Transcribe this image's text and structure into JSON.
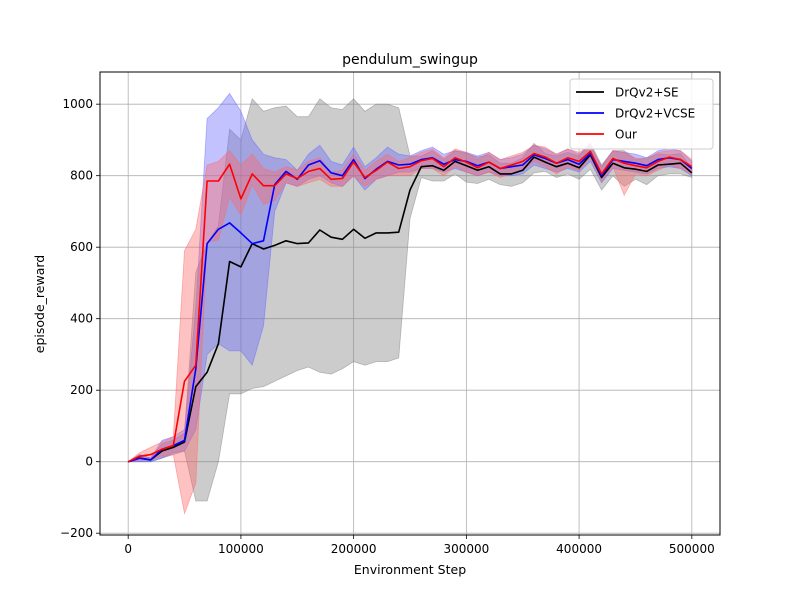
{
  "chart_data": {
    "type": "line",
    "title": "pendulum_swingup",
    "xlabel": "Environment Step",
    "ylabel": "episode_reward",
    "xlim": [
      -25000,
      525000
    ],
    "ylim": [
      -205,
      1090
    ],
    "xticks": [
      0,
      100000,
      200000,
      300000,
      400000,
      500000
    ],
    "yticks": [
      -200,
      0,
      200,
      400,
      600,
      800,
      1000
    ],
    "grid": true,
    "legend": "top-right",
    "x": [
      0,
      10000,
      20000,
      30000,
      40000,
      50000,
      60000,
      70000,
      80000,
      90000,
      100000,
      110000,
      120000,
      130000,
      140000,
      150000,
      160000,
      170000,
      180000,
      190000,
      200000,
      210000,
      220000,
      230000,
      240000,
      250000,
      260000,
      270000,
      280000,
      290000,
      300000,
      310000,
      320000,
      330000,
      340000,
      350000,
      360000,
      370000,
      380000,
      390000,
      400000,
      410000,
      420000,
      430000,
      440000,
      450000,
      460000,
      470000,
      480000,
      490000,
      500000
    ],
    "series": [
      {
        "name": "DrQv2+SE",
        "color": "#000000",
        "band_color": "#808080",
        "values": [
          0,
          10,
          5,
          30,
          40,
          55,
          210,
          250,
          330,
          560,
          545,
          610,
          595,
          605,
          618,
          610,
          612,
          648,
          628,
          622,
          650,
          625,
          640,
          640,
          642,
          760,
          825,
          828,
          815,
          840,
          828,
          815,
          825,
          805,
          805,
          815,
          852,
          838,
          825,
          835,
          822,
          858,
          795,
          835,
          822,
          818,
          812,
          830,
          832,
          835,
          808
        ],
        "lower": [
          0,
          0,
          0,
          10,
          20,
          30,
          -110,
          -110,
          0,
          190,
          190,
          205,
          210,
          225,
          240,
          255,
          265,
          250,
          245,
          260,
          280,
          270,
          280,
          280,
          290,
          680,
          795,
          785,
          785,
          805,
          782,
          778,
          790,
          775,
          770,
          780,
          808,
          812,
          795,
          805,
          790,
          818,
          760,
          800,
          770,
          790,
          775,
          800,
          805,
          805,
          795
        ],
        "upper": [
          0,
          20,
          10,
          50,
          60,
          80,
          530,
          610,
          660,
          930,
          900,
          1015,
          980,
          990,
          995,
          965,
          965,
          1015,
          990,
          985,
          1015,
          980,
          1000,
          1000,
          990,
          855,
          855,
          870,
          845,
          870,
          862,
          852,
          858,
          835,
          835,
          850,
          890,
          862,
          855,
          865,
          855,
          892,
          830,
          870,
          870,
          845,
          850,
          860,
          858,
          862,
          822
        ]
      },
      {
        "name": "DrQv2+VCSE",
        "color": "#0000ff",
        "band_color": "#6666ff",
        "values": [
          0,
          10,
          5,
          35,
          45,
          60,
          260,
          610,
          650,
          668,
          640,
          610,
          618,
          775,
          812,
          790,
          830,
          842,
          808,
          800,
          845,
          792,
          818,
          840,
          830,
          832,
          845,
          850,
          832,
          845,
          840,
          828,
          838,
          820,
          825,
          830,
          858,
          848,
          835,
          845,
          832,
          862,
          800,
          845,
          840,
          835,
          828,
          845,
          850,
          845,
          820
        ],
        "lower": [
          0,
          0,
          0,
          10,
          25,
          30,
          90,
          300,
          330,
          310,
          310,
          270,
          380,
          700,
          780,
          770,
          790,
          800,
          780,
          770,
          800,
          760,
          790,
          800,
          810,
          810,
          820,
          820,
          810,
          820,
          810,
          800,
          810,
          800,
          800,
          805,
          830,
          820,
          810,
          820,
          810,
          840,
          780,
          820,
          815,
          810,
          805,
          820,
          825,
          820,
          800
        ],
        "upper": [
          0,
          20,
          10,
          60,
          70,
          90,
          430,
          960,
          990,
          1030,
          980,
          900,
          860,
          850,
          845,
          815,
          860,
          885,
          840,
          830,
          880,
          825,
          850,
          880,
          860,
          855,
          870,
          880,
          860,
          870,
          865,
          855,
          865,
          845,
          850,
          860,
          885,
          875,
          860,
          875,
          860,
          885,
          825,
          870,
          865,
          860,
          850,
          870,
          875,
          870,
          840
        ]
      },
      {
        "name": "Our",
        "color": "#ff0000",
        "band_color": "#ff6666",
        "values": [
          0,
          15,
          20,
          35,
          45,
          225,
          270,
          785,
          785,
          832,
          735,
          805,
          772,
          772,
          805,
          792,
          812,
          820,
          790,
          792,
          838,
          795,
          815,
          838,
          820,
          825,
          842,
          848,
          825,
          850,
          838,
          822,
          838,
          820,
          830,
          840,
          862,
          852,
          835,
          850,
          840,
          868,
          805,
          848,
          835,
          828,
          822,
          840,
          852,
          845,
          825
        ],
        "lower": [
          0,
          5,
          5,
          15,
          20,
          -145,
          -60,
          615,
          620,
          740,
          690,
          775,
          720,
          730,
          780,
          770,
          780,
          790,
          770,
          770,
          800,
          770,
          790,
          800,
          800,
          800,
          820,
          820,
          800,
          825,
          810,
          800,
          810,
          795,
          805,
          815,
          840,
          825,
          805,
          825,
          815,
          850,
          785,
          825,
          745,
          805,
          800,
          815,
          830,
          820,
          805
        ],
        "upper": [
          0,
          25,
          40,
          55,
          70,
          590,
          650,
          830,
          840,
          870,
          830,
          860,
          820,
          810,
          825,
          815,
          840,
          850,
          810,
          815,
          860,
          815,
          840,
          860,
          840,
          850,
          865,
          875,
          850,
          875,
          865,
          845,
          865,
          845,
          855,
          865,
          885,
          880,
          860,
          875,
          865,
          885,
          825,
          870,
          865,
          850,
          845,
          865,
          870,
          870,
          845
        ]
      }
    ]
  }
}
